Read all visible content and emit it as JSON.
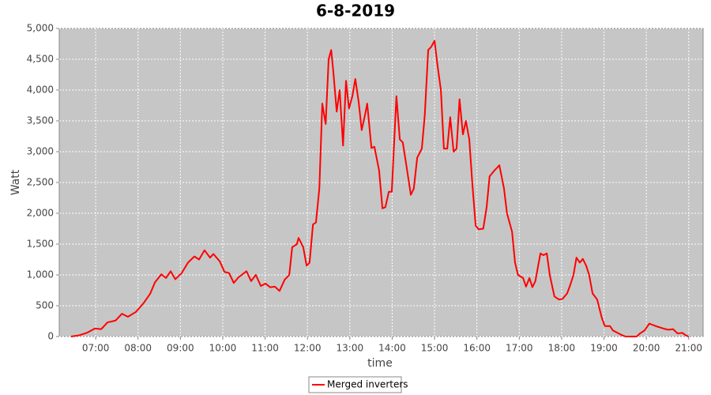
{
  "chart_data": {
    "type": "line",
    "title": "6-8-2019",
    "x_label": "time",
    "y_label": "Watt",
    "x": [
      6.42,
      6.61,
      6.79,
      6.98,
      7.13,
      7.28,
      7.47,
      7.62,
      7.76,
      7.95,
      8.14,
      8.29,
      8.4,
      8.55,
      8.66,
      8.77,
      8.88,
      9.03,
      9.18,
      9.33,
      9.44,
      9.57,
      9.7,
      9.78,
      9.93,
      10.04,
      10.15,
      10.26,
      10.37,
      10.56,
      10.67,
      10.78,
      10.9,
      11.01,
      11.12,
      11.23,
      11.34,
      11.46,
      11.57,
      11.64,
      11.75,
      11.79,
      11.9,
      11.98,
      12.05,
      12.13,
      12.2,
      12.28,
      12.35,
      12.43,
      12.5,
      12.56,
      12.61,
      12.69,
      12.76,
      12.84,
      12.91,
      12.98,
      13.06,
      13.13,
      13.21,
      13.28,
      13.36,
      13.41,
      13.51,
      13.58,
      13.69,
      13.77,
      13.84,
      13.92,
      13.99,
      14.1,
      14.18,
      14.25,
      14.33,
      14.44,
      14.51,
      14.59,
      14.7,
      14.77,
      14.85,
      14.92,
      15.0,
      15.07,
      15.15,
      15.22,
      15.3,
      15.37,
      15.45,
      15.52,
      15.59,
      15.67,
      15.74,
      15.82,
      15.89,
      15.97,
      16.04,
      16.15,
      16.23,
      16.3,
      16.42,
      16.53,
      16.64,
      16.71,
      16.83,
      16.9,
      16.97,
      17.09,
      17.16,
      17.24,
      17.31,
      17.38,
      17.5,
      17.57,
      17.65,
      17.72,
      17.83,
      17.94,
      18.02,
      18.13,
      18.2,
      18.28,
      18.35,
      18.43,
      18.5,
      18.58,
      18.65,
      18.73,
      18.84,
      18.95,
      19.02,
      19.14,
      19.21,
      19.29,
      19.4,
      19.51,
      19.77,
      19.85,
      19.96,
      20.07,
      20.22,
      20.4,
      20.52,
      20.63,
      20.74,
      20.85,
      20.93,
      21.0
    ],
    "series": [
      {
        "name": "Merged inverters",
        "color": "#ff0000",
        "values": [
          0,
          20,
          60,
          130,
          120,
          230,
          260,
          370,
          320,
          400,
          550,
          700,
          880,
          1010,
          950,
          1060,
          930,
          1030,
          1200,
          1300,
          1250,
          1400,
          1280,
          1340,
          1220,
          1050,
          1030,
          870,
          960,
          1060,
          900,
          1000,
          820,
          860,
          800,
          810,
          740,
          920,
          1000,
          1450,
          1500,
          1600,
          1450,
          1150,
          1200,
          1820,
          1850,
          2400,
          3780,
          3450,
          4500,
          4650,
          4300,
          3650,
          4000,
          3100,
          4150,
          3700,
          3900,
          4180,
          3800,
          3350,
          3600,
          3780,
          3060,
          3080,
          2700,
          2080,
          2100,
          2350,
          2350,
          3900,
          3200,
          3150,
          2800,
          2300,
          2400,
          2900,
          3050,
          3600,
          4650,
          4700,
          4800,
          4400,
          4000,
          3050,
          3050,
          3560,
          3000,
          3050,
          3850,
          3280,
          3500,
          3200,
          2500,
          1800,
          1740,
          1750,
          2100,
          2600,
          2700,
          2780,
          2400,
          2000,
          1700,
          1200,
          1000,
          950,
          810,
          950,
          800,
          900,
          1350,
          1320,
          1350,
          1000,
          650,
          600,
          610,
          700,
          830,
          1000,
          1280,
          1200,
          1260,
          1150,
          1000,
          700,
          600,
          300,
          170,
          170,
          100,
          70,
          30,
          0,
          0,
          50,
          100,
          210,
          170,
          130,
          110,
          120,
          50,
          60,
          20,
          0
        ]
      }
    ],
    "xlim": [
      6.14,
      21.34
    ],
    "xticks": [
      {
        "value": 7,
        "label": "07:00"
      },
      {
        "value": 8,
        "label": "08:00"
      },
      {
        "value": 9,
        "label": "09:00"
      },
      {
        "value": 10,
        "label": "10:00"
      },
      {
        "value": 11,
        "label": "11:00"
      },
      {
        "value": 12,
        "label": "12:00"
      },
      {
        "value": 13,
        "label": "13:00"
      },
      {
        "value": 14,
        "label": "14:00"
      },
      {
        "value": 15,
        "label": "15:00"
      },
      {
        "value": 16,
        "label": "16:00"
      },
      {
        "value": 17,
        "label": "17:00"
      },
      {
        "value": 18,
        "label": "18:00"
      },
      {
        "value": 19,
        "label": "19:00"
      },
      {
        "value": 20,
        "label": "20:00"
      },
      {
        "value": 21,
        "label": "21:00"
      }
    ],
    "ylim": [
      0,
      5000
    ],
    "yticks": [
      0,
      500,
      {
        "value": 1000,
        "label": "1,000"
      },
      {
        "value": 1500,
        "label": "1,500"
      },
      {
        "value": 2000,
        "label": "2,000"
      },
      {
        "value": 2500,
        "label": "2,500"
      },
      {
        "value": 3000,
        "label": "3,000"
      },
      {
        "value": 3500,
        "label": "3,500"
      },
      {
        "value": 4000,
        "label": "4,000"
      },
      {
        "value": 4500,
        "label": "4,500"
      },
      {
        "value": 5000,
        "label": "5,000"
      }
    ],
    "grid": true,
    "legend": "bottom"
  }
}
